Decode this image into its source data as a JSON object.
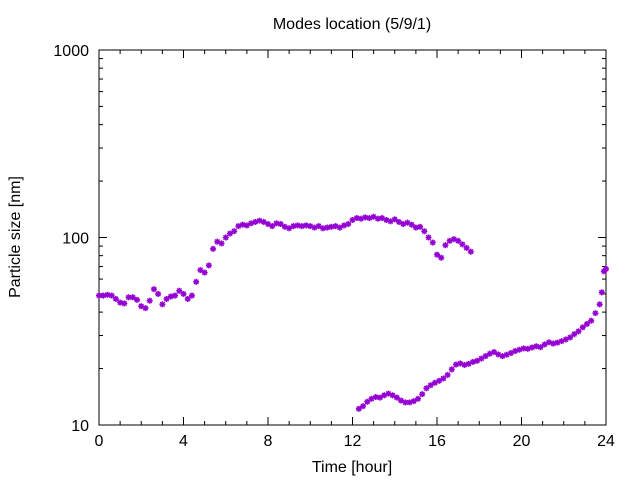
{
  "chart_data": {
    "type": "scatter",
    "title": "Modes location (5/9/1)",
    "xlabel": "Time [hour]",
    "ylabel": "Particle size [nm]",
    "xlim": [
      0,
      24
    ],
    "ylim": [
      10,
      1000
    ],
    "yscale": "log",
    "xticks": [
      0,
      4,
      8,
      12,
      16,
      20,
      24
    ],
    "yticks": [
      10,
      100,
      1000
    ],
    "grid": false,
    "legend": "none",
    "marker_color": "#9400d3",
    "series": [
      {
        "values_description_omitted": true,
        "points": [
          [
            0.0,
            49
          ],
          [
            0.2,
            49
          ],
          [
            0.4,
            49.5
          ],
          [
            0.6,
            49
          ],
          [
            0.8,
            47
          ],
          [
            1.0,
            45
          ],
          [
            1.2,
            44.5
          ],
          [
            1.4,
            48
          ],
          [
            1.6,
            48
          ],
          [
            1.8,
            46.5
          ],
          [
            2.0,
            43
          ],
          [
            2.2,
            42
          ],
          [
            2.4,
            46
          ],
          [
            2.6,
            53
          ],
          [
            2.8,
            50
          ],
          [
            3.0,
            44
          ],
          [
            3.2,
            47
          ],
          [
            3.4,
            48.5
          ],
          [
            3.6,
            49
          ],
          [
            3.8,
            52
          ],
          [
            4.0,
            50
          ],
          [
            4.2,
            47
          ],
          [
            4.4,
            49
          ],
          [
            4.6,
            58
          ],
          [
            4.8,
            67
          ],
          [
            5.0,
            65
          ],
          [
            5.2,
            71
          ],
          [
            5.4,
            87
          ],
          [
            5.6,
            95
          ],
          [
            5.8,
            93
          ],
          [
            6.0,
            100
          ],
          [
            6.2,
            105
          ],
          [
            6.4,
            108
          ],
          [
            6.6,
            115
          ],
          [
            6.8,
            117
          ],
          [
            7.0,
            116
          ],
          [
            7.2,
            119
          ],
          [
            7.4,
            121
          ],
          [
            7.6,
            123
          ],
          [
            7.8,
            121
          ],
          [
            8.0,
            118
          ],
          [
            8.2,
            115
          ],
          [
            8.4,
            119
          ],
          [
            8.6,
            118
          ],
          [
            8.8,
            114
          ],
          [
            9.0,
            112
          ],
          [
            9.2,
            115
          ],
          [
            9.4,
            116
          ],
          [
            9.6,
            115
          ],
          [
            9.8,
            116
          ],
          [
            10.0,
            115
          ],
          [
            10.2,
            113
          ],
          [
            10.4,
            115
          ],
          [
            10.6,
            112
          ],
          [
            10.8,
            113
          ],
          [
            11.0,
            114
          ],
          [
            11.2,
            115
          ],
          [
            11.4,
            113
          ],
          [
            11.6,
            116
          ],
          [
            11.8,
            118
          ],
          [
            12.0,
            124
          ],
          [
            12.2,
            127
          ],
          [
            12.4,
            126
          ],
          [
            12.6,
            128
          ],
          [
            12.8,
            127
          ],
          [
            13.0,
            129
          ],
          [
            13.2,
            126
          ],
          [
            13.4,
            127
          ],
          [
            13.6,
            124
          ],
          [
            13.8,
            122
          ],
          [
            14.0,
            125
          ],
          [
            14.2,
            121
          ],
          [
            14.4,
            118
          ],
          [
            14.6,
            120
          ],
          [
            14.8,
            117
          ],
          [
            15.0,
            113
          ],
          [
            15.2,
            114
          ],
          [
            15.4,
            108
          ],
          [
            15.6,
            100
          ],
          [
            15.8,
            94
          ],
          [
            16.0,
            81
          ],
          [
            16.2,
            78
          ],
          [
            16.4,
            91
          ],
          [
            16.6,
            96
          ],
          [
            16.8,
            98
          ],
          [
            17.0,
            96
          ],
          [
            17.2,
            92
          ],
          [
            17.4,
            88
          ],
          [
            17.6,
            84
          ]
        ]
      },
      {
        "points": [
          [
            12.3,
            12.2
          ],
          [
            12.5,
            12.6
          ],
          [
            12.7,
            13.3
          ],
          [
            12.9,
            13.8
          ],
          [
            13.1,
            14.1
          ],
          [
            13.3,
            14.0
          ],
          [
            13.5,
            14.4
          ],
          [
            13.7,
            14.7
          ],
          [
            13.9,
            14.4
          ],
          [
            14.1,
            14.0
          ],
          [
            14.3,
            13.5
          ],
          [
            14.5,
            13.2
          ],
          [
            14.7,
            13.2
          ],
          [
            14.9,
            13.4
          ],
          [
            15.1,
            13.8
          ],
          [
            15.3,
            14.6
          ],
          [
            15.5,
            15.7
          ],
          [
            15.7,
            16.3
          ],
          [
            15.9,
            16.8
          ],
          [
            16.1,
            17.2
          ],
          [
            16.3,
            17.7
          ],
          [
            16.5,
            18.5
          ],
          [
            16.7,
            19.8
          ],
          [
            16.9,
            21.0
          ],
          [
            17.1,
            21.3
          ],
          [
            17.3,
            20.9
          ],
          [
            17.5,
            21.2
          ],
          [
            17.7,
            21.7
          ],
          [
            17.9,
            22.0
          ],
          [
            18.1,
            22.6
          ],
          [
            18.3,
            23.3
          ],
          [
            18.5,
            24.0
          ],
          [
            18.7,
            24.5
          ],
          [
            18.9,
            23.8
          ],
          [
            19.1,
            23.3
          ],
          [
            19.3,
            23.7
          ],
          [
            19.5,
            24.2
          ],
          [
            19.7,
            24.8
          ],
          [
            19.9,
            25.2
          ],
          [
            20.1,
            25.6
          ],
          [
            20.3,
            25.5
          ],
          [
            20.5,
            25.9
          ],
          [
            20.7,
            26.3
          ],
          [
            20.9,
            26.0
          ],
          [
            21.1,
            26.9
          ],
          [
            21.3,
            27.6
          ],
          [
            21.5,
            27.2
          ],
          [
            21.7,
            27.5
          ],
          [
            21.9,
            28.0
          ],
          [
            22.1,
            28.6
          ],
          [
            22.3,
            29.3
          ],
          [
            22.5,
            30.5
          ],
          [
            22.7,
            31.6
          ],
          [
            22.9,
            33.2
          ],
          [
            23.1,
            34.6
          ],
          [
            23.3,
            36.0
          ],
          [
            23.5,
            39.5
          ],
          [
            23.7,
            44.0
          ],
          [
            23.8,
            51.0
          ],
          [
            23.9,
            66.0
          ],
          [
            24.0,
            68.0
          ]
        ]
      }
    ]
  }
}
